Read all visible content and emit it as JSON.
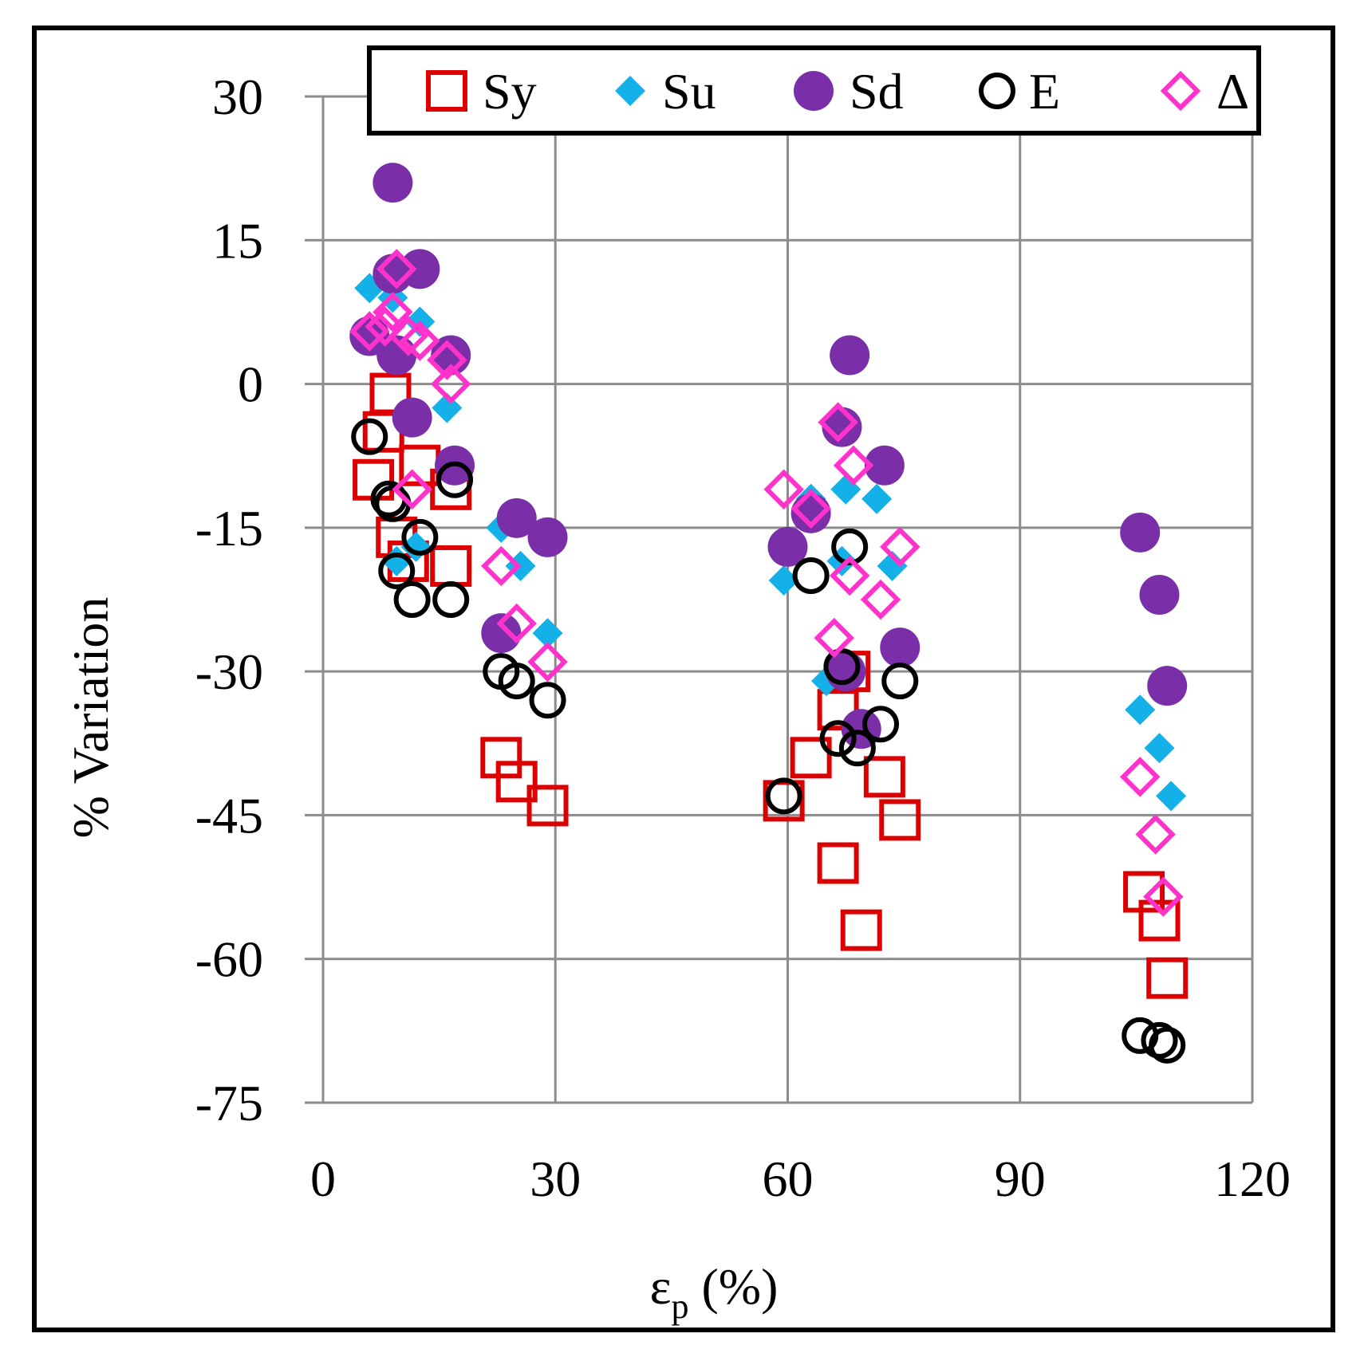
{
  "chart_data": {
    "type": "scatter",
    "title": "",
    "xlabel": "εp (%)",
    "xlabel_main": "ε",
    "xlabel_sub": "p",
    "xlabel_tail": " (%)",
    "ylabel": "% Variation",
    "xlim": [
      0,
      120
    ],
    "ylim": [
      -75,
      30
    ],
    "xticks": [
      0,
      30,
      60,
      90,
      120
    ],
    "yticks": [
      30,
      15,
      0,
      -15,
      -30,
      -45,
      -60,
      -75
    ],
    "grid": true,
    "legend_position": "top",
    "series": [
      {
        "name": "Sy",
        "marker": "open-square",
        "color": "#DD0000",
        "points": [
          [
            8.7,
            -1
          ],
          [
            7.8,
            -5
          ],
          [
            6.5,
            -10
          ],
          [
            9.5,
            -16
          ],
          [
            11,
            -18.5
          ],
          [
            12.5,
            -8.5
          ],
          [
            16.5,
            -11
          ],
          [
            16.5,
            -19
          ],
          [
            23,
            -39
          ],
          [
            25,
            -41.5
          ],
          [
            29,
            -44
          ],
          [
            59.5,
            -43.5
          ],
          [
            63,
            -39
          ],
          [
            66.5,
            -50
          ],
          [
            68,
            -30
          ],
          [
            66.5,
            -34
          ],
          [
            69.5,
            -57
          ],
          [
            72.5,
            -41
          ],
          [
            74.5,
            -45.5
          ],
          [
            106,
            -53
          ],
          [
            108,
            -56
          ],
          [
            109,
            -62
          ]
        ]
      },
      {
        "name": "Su",
        "marker": "filled-diamond",
        "color": "#14B0E8",
        "points": [
          [
            6,
            10
          ],
          [
            9,
            9
          ],
          [
            12.5,
            6.5
          ],
          [
            16,
            -2.5
          ],
          [
            12,
            -17
          ],
          [
            9.5,
            -18.5
          ],
          [
            23,
            -15
          ],
          [
            25.5,
            -19
          ],
          [
            29,
            -26
          ],
          [
            59.5,
            -20.5
          ],
          [
            63,
            -12
          ],
          [
            67.5,
            -11
          ],
          [
            71.5,
            -12
          ],
          [
            73.5,
            -19
          ],
          [
            65,
            -31
          ],
          [
            67,
            -18.5
          ],
          [
            105.5,
            -34
          ],
          [
            108,
            -38
          ],
          [
            109.5,
            -43
          ]
        ]
      },
      {
        "name": "Sd",
        "marker": "filled-circle",
        "color": "#7A2FA8",
        "points": [
          [
            9,
            21
          ],
          [
            9,
            11.5
          ],
          [
            12.5,
            12
          ],
          [
            6,
            5
          ],
          [
            9.5,
            3
          ],
          [
            16.5,
            3
          ],
          [
            11.5,
            -3.5
          ],
          [
            17,
            -8.5
          ],
          [
            23,
            -26
          ],
          [
            25,
            -14
          ],
          [
            29,
            -16
          ],
          [
            60,
            -17
          ],
          [
            63,
            -13.5
          ],
          [
            67,
            -4.5
          ],
          [
            68,
            3
          ],
          [
            72.5,
            -8.5
          ],
          [
            67.5,
            -30
          ],
          [
            69.5,
            -36
          ],
          [
            74.5,
            -27.5
          ],
          [
            105.5,
            -15.5
          ],
          [
            108,
            -22
          ],
          [
            109,
            -31.5
          ]
        ]
      },
      {
        "name": "E",
        "marker": "open-circle",
        "color": "#000000",
        "points": [
          [
            6,
            -5.5
          ],
          [
            8.5,
            -12
          ],
          [
            9,
            -12.5
          ],
          [
            9.5,
            -19.5
          ],
          [
            11.5,
            -22.5
          ],
          [
            12.5,
            -16
          ],
          [
            16.5,
            -22.5
          ],
          [
            17,
            -10
          ],
          [
            23,
            -30
          ],
          [
            25,
            -31
          ],
          [
            29,
            -33
          ],
          [
            59.5,
            -43
          ],
          [
            63,
            -20
          ],
          [
            67,
            -29.5
          ],
          [
            68,
            -17
          ],
          [
            66.5,
            -37
          ],
          [
            69,
            -38
          ],
          [
            72,
            -35.5
          ],
          [
            74.5,
            -31
          ],
          [
            105.5,
            -68
          ],
          [
            108,
            -68.5
          ],
          [
            109,
            -69
          ]
        ]
      },
      {
        "name": "Δ",
        "marker": "open-diamond",
        "color": "#FF33CC",
        "points": [
          [
            6,
            5.5
          ],
          [
            8,
            6
          ],
          [
            9,
            7.5
          ],
          [
            9.5,
            12
          ],
          [
            11,
            5
          ],
          [
            12.5,
            4.5
          ],
          [
            16,
            2.5
          ],
          [
            16.5,
            0
          ],
          [
            11.5,
            -11
          ],
          [
            23,
            -19
          ],
          [
            25,
            -25
          ],
          [
            29,
            -29
          ],
          [
            59.5,
            -11
          ],
          [
            63,
            -13
          ],
          [
            66.5,
            -4
          ],
          [
            68.5,
            -8.5
          ],
          [
            66,
            -26.5
          ],
          [
            68,
            -20
          ],
          [
            72,
            -22.5
          ],
          [
            74.5,
            -17
          ],
          [
            105.5,
            -41
          ],
          [
            107.5,
            -47
          ],
          [
            108.5,
            -53.5
          ]
        ]
      }
    ]
  }
}
